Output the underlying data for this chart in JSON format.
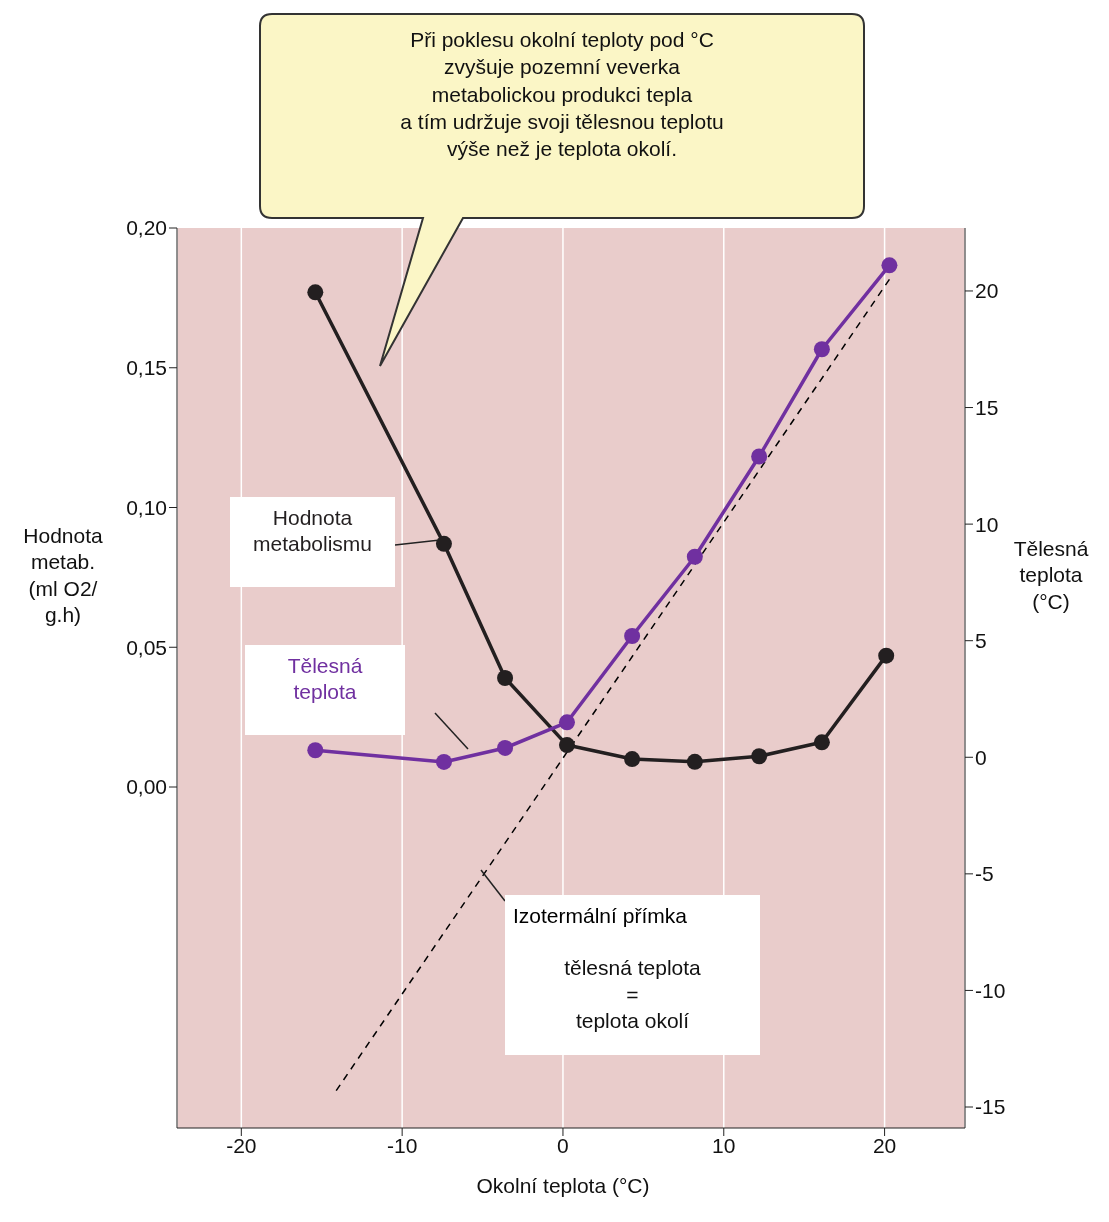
{
  "chart_data": {
    "type": "line",
    "xlabel": "Okolní teplota (°C)",
    "ylabel": "Hodnota\nmetab.\n(ml  O2/\ng.h)",
    "y2label": "Tělesná\nteplota\n(°C)",
    "annotations": [
      "Při poklesu okolní teploty pod °C\nzvyšuje pozemní veverka\nmetabolickou produkci tepla\na tím udržuje svoji tělesnou teplotu\nvýše než je teplota okolí.",
      "tělesná teplota\n=\nteplota okolí"
    ],
    "xlim": [
      -24,
      25
    ],
    "xticks": [
      -20,
      -10,
      0,
      10,
      20
    ],
    "ylim": [
      -0.122,
      0.2
    ],
    "yticks": [
      {
        "value": 0,
        "label": "0,00"
      },
      {
        "value": 0.05,
        "label": "0,05"
      },
      {
        "value": 0.1,
        "label": "0,10"
      },
      {
        "value": 0.15,
        "label": "0,15"
      },
      {
        "value": 0.2,
        "label": "0,20"
      }
    ],
    "y2lim": [
      -15.9,
      22.7
    ],
    "y2ticks": [
      -15,
      -10,
      -5,
      0,
      5,
      10,
      15,
      20
    ],
    "grid": "x",
    "marker": "circle",
    "line_style": "solid",
    "series": [
      {
        "name": "Hodnota metabolismu",
        "color": "#231f20",
        "x": [
          -15.4,
          -7.4,
          -3.6,
          0.25,
          4.3,
          8.2,
          12.2,
          16.1,
          20.1
        ],
        "values": [
          0.177,
          0.087,
          0.039,
          0.015,
          0.01,
          0.009,
          0.011,
          0.016,
          0.047
        ]
      },
      {
        "name": "Tělesná teplota",
        "color": "#7030a0",
        "axis": "y2",
        "x": [
          -15.4,
          -7.4,
          -3.6,
          0.25,
          4.3,
          8.2,
          12.2,
          16.1,
          20.3
        ],
        "values": [
          0.3,
          -0.2,
          0.4,
          1.5,
          5.2,
          8.6,
          12.9,
          17.5,
          21.1
        ]
      },
      {
        "name": "Izotermální přímka",
        "color": "#000000",
        "axis": "y2",
        "marker": "none",
        "line_style": "dashed",
        "x": [
          -14.1,
          20.5
        ],
        "values": [
          -14.3,
          20.7
        ]
      }
    ]
  }
}
